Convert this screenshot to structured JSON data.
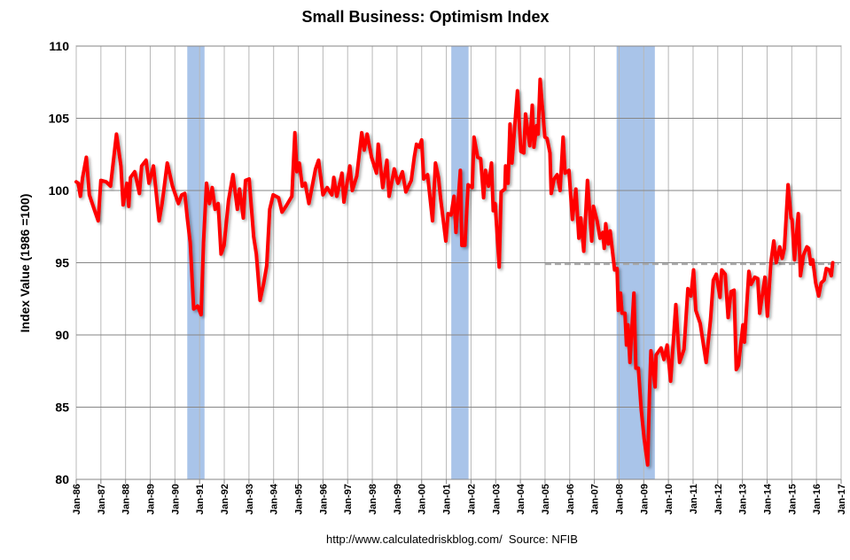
{
  "chart_data": {
    "type": "line",
    "title": "Small Business: Optimism Index",
    "xlabel": "",
    "ylabel": "Index Value (1986 =100)",
    "source": "http://www.calculatedriskblog.com/  Source: NFIB",
    "ylim": [
      80,
      110
    ],
    "yticks": [
      "80",
      "85",
      "90",
      "95",
      "100",
      "105",
      "110"
    ],
    "xlim": [
      1986,
      2017
    ],
    "xticks": [
      "Jan-86",
      "Jan-87",
      "Jan-88",
      "Jan-89",
      "Jan-90",
      "Jan-91",
      "Jan-92",
      "Jan-93",
      "Jan-94",
      "Jan-95",
      "Jan-96",
      "Jan-97",
      "Jan-98",
      "Jan-99",
      "Jan-00",
      "Jan-01",
      "Jan-02",
      "Jan-03",
      "Jan-04",
      "Jan-05",
      "Jan-06",
      "Jan-07",
      "Jan-08",
      "Jan-09",
      "Jan-10",
      "Jan-11",
      "Jan-12",
      "Jan-13",
      "Jan-14",
      "Jan-15",
      "Jan-16",
      "Jan-17"
    ],
    "grid": true,
    "line_color": "#ff0000",
    "recession_color": "#a9c4e9",
    "recessions": [
      [
        1990.5,
        1991.2
      ],
      [
        2001.2,
        2001.9
      ],
      [
        2007.9,
        2009.45
      ]
    ],
    "reference_line": {
      "value": 94.9,
      "start": 2005.0,
      "end": 2016.9,
      "style": "dashed",
      "color": "#a6a6a6"
    },
    "series": [
      {
        "points": [
          [
            1986.0,
            100.6
          ],
          [
            1986.08,
            100.5
          ],
          [
            1986.17,
            99.6
          ],
          [
            1986.26,
            100.9
          ],
          [
            1986.41,
            102.3
          ],
          [
            1986.53,
            99.7
          ],
          [
            1986.73,
            98.7
          ],
          [
            1986.89,
            97.9
          ],
          [
            1987.0,
            100.7
          ],
          [
            1987.21,
            100.6
          ],
          [
            1987.39,
            100.3
          ],
          [
            1987.63,
            103.9
          ],
          [
            1987.81,
            101.7
          ],
          [
            1987.9,
            99.0
          ],
          [
            1988.05,
            100.5
          ],
          [
            1988.13,
            98.9
          ],
          [
            1988.2,
            100.9
          ],
          [
            1988.37,
            101.3
          ],
          [
            1988.56,
            99.8
          ],
          [
            1988.65,
            101.7
          ],
          [
            1988.83,
            102.1
          ],
          [
            1988.95,
            100.5
          ],
          [
            1989.13,
            101.7
          ],
          [
            1989.36,
            97.9
          ],
          [
            1989.48,
            99.1
          ],
          [
            1989.69,
            101.9
          ],
          [
            1989.9,
            100.3
          ],
          [
            1990.14,
            99.1
          ],
          [
            1990.28,
            99.7
          ],
          [
            1990.4,
            99.8
          ],
          [
            1990.5,
            98.1
          ],
          [
            1990.62,
            96.4
          ],
          [
            1990.76,
            91.8
          ],
          [
            1990.92,
            92.0
          ],
          [
            1991.06,
            91.4
          ],
          [
            1991.16,
            96.4
          ],
          [
            1991.28,
            100.5
          ],
          [
            1991.4,
            99.1
          ],
          [
            1991.51,
            100.2
          ],
          [
            1991.63,
            98.7
          ],
          [
            1991.75,
            99.1
          ],
          [
            1991.87,
            95.6
          ],
          [
            1991.99,
            96.2
          ],
          [
            1992.17,
            99.3
          ],
          [
            1992.35,
            101.1
          ],
          [
            1992.53,
            98.7
          ],
          [
            1992.62,
            100.1
          ],
          [
            1992.77,
            98.1
          ],
          [
            1992.86,
            100.7
          ],
          [
            1993.01,
            100.8
          ],
          [
            1993.19,
            96.8
          ],
          [
            1993.3,
            95.6
          ],
          [
            1993.45,
            92.4
          ],
          [
            1993.6,
            93.6
          ],
          [
            1993.72,
            94.8
          ],
          [
            1993.84,
            98.7
          ],
          [
            1993.98,
            99.7
          ],
          [
            1994.2,
            99.5
          ],
          [
            1994.34,
            98.5
          ],
          [
            1994.5,
            98.9
          ],
          [
            1994.74,
            99.6
          ],
          [
            1994.86,
            104.0
          ],
          [
            1994.94,
            101.3
          ],
          [
            1995.04,
            101.9
          ],
          [
            1995.16,
            100.3
          ],
          [
            1995.28,
            100.5
          ],
          [
            1995.43,
            99.1
          ],
          [
            1995.7,
            101.5
          ],
          [
            1995.82,
            102.1
          ],
          [
            1996.0,
            99.7
          ],
          [
            1996.17,
            100.2
          ],
          [
            1996.36,
            99.7
          ],
          [
            1996.44,
            100.9
          ],
          [
            1996.56,
            99.6
          ],
          [
            1996.77,
            101.2
          ],
          [
            1996.85,
            99.2
          ],
          [
            1997.09,
            101.7
          ],
          [
            1997.19,
            100.0
          ],
          [
            1997.37,
            101.0
          ],
          [
            1997.57,
            104.0
          ],
          [
            1997.67,
            102.8
          ],
          [
            1997.79,
            103.9
          ],
          [
            1997.97,
            102.3
          ],
          [
            1998.17,
            101.2
          ],
          [
            1998.24,
            103.2
          ],
          [
            1998.42,
            100.2
          ],
          [
            1998.59,
            102.1
          ],
          [
            1998.68,
            99.6
          ],
          [
            1998.89,
            101.5
          ],
          [
            1999.04,
            100.5
          ],
          [
            1999.22,
            101.3
          ],
          [
            1999.36,
            99.9
          ],
          [
            1999.58,
            100.7
          ],
          [
            1999.7,
            102.3
          ],
          [
            1999.79,
            103.2
          ],
          [
            1999.9,
            103.0
          ],
          [
            2000.0,
            103.5
          ],
          [
            2000.08,
            100.8
          ],
          [
            2000.24,
            101.1
          ],
          [
            2000.44,
            97.9
          ],
          [
            2000.56,
            101.9
          ],
          [
            2000.68,
            100.9
          ],
          [
            2000.77,
            99.4
          ],
          [
            2000.98,
            96.5
          ],
          [
            2001.07,
            98.4
          ],
          [
            2001.19,
            98.3
          ],
          [
            2001.31,
            99.6
          ],
          [
            2001.39,
            97.1
          ],
          [
            2001.57,
            101.4
          ],
          [
            2001.63,
            96.2
          ],
          [
            2001.75,
            96.2
          ],
          [
            2001.88,
            100.4
          ],
          [
            2002.05,
            100.2
          ],
          [
            2002.12,
            103.7
          ],
          [
            2002.27,
            102.3
          ],
          [
            2002.39,
            102.2
          ],
          [
            2002.51,
            99.5
          ],
          [
            2002.59,
            101.4
          ],
          [
            2002.71,
            100.3
          ],
          [
            2002.83,
            101.9
          ],
          [
            2002.9,
            98.6
          ],
          [
            2002.98,
            99.1
          ],
          [
            2003.14,
            94.7
          ],
          [
            2003.22,
            99.9
          ],
          [
            2003.37,
            100.1
          ],
          [
            2003.4,
            101.7
          ],
          [
            2003.5,
            100.5
          ],
          [
            2003.58,
            104.6
          ],
          [
            2003.66,
            101.9
          ],
          [
            2003.88,
            106.9
          ],
          [
            2004.02,
            102.7
          ],
          [
            2004.14,
            102.6
          ],
          [
            2004.21,
            105.3
          ],
          [
            2004.38,
            103.1
          ],
          [
            2004.48,
            105.9
          ],
          [
            2004.55,
            103.0
          ],
          [
            2004.66,
            104.5
          ],
          [
            2004.72,
            103.9
          ],
          [
            2004.8,
            107.7
          ],
          [
            2004.99,
            103.7
          ],
          [
            2005.08,
            103.6
          ],
          [
            2005.2,
            102.6
          ],
          [
            2005.25,
            99.8
          ],
          [
            2005.37,
            100.8
          ],
          [
            2005.49,
            101.1
          ],
          [
            2005.61,
            100.0
          ],
          [
            2005.73,
            103.7
          ],
          [
            2005.81,
            101.2
          ],
          [
            2005.97,
            101.4
          ],
          [
            2006.11,
            98.0
          ],
          [
            2006.25,
            100.1
          ],
          [
            2006.37,
            96.7
          ],
          [
            2006.45,
            98.1
          ],
          [
            2006.57,
            95.8
          ],
          [
            2006.72,
            100.7
          ],
          [
            2006.89,
            96.5
          ],
          [
            2006.96,
            98.9
          ],
          [
            2007.11,
            97.9
          ],
          [
            2007.23,
            96.7
          ],
          [
            2007.34,
            97.1
          ],
          [
            2007.4,
            96.0
          ],
          [
            2007.46,
            97.7
          ],
          [
            2007.56,
            96.3
          ],
          [
            2007.64,
            97.2
          ],
          [
            2007.82,
            94.5
          ],
          [
            2007.92,
            94.6
          ],
          [
            2007.97,
            91.7
          ],
          [
            2008.06,
            92.9
          ],
          [
            2008.12,
            91.5
          ],
          [
            2008.24,
            91.5
          ],
          [
            2008.3,
            89.3
          ],
          [
            2008.36,
            90.7
          ],
          [
            2008.44,
            88.1
          ],
          [
            2008.6,
            92.9
          ],
          [
            2008.68,
            87.7
          ],
          [
            2008.78,
            87.7
          ],
          [
            2008.9,
            84.8
          ],
          [
            2009.02,
            82.8
          ],
          [
            2009.16,
            81.0
          ],
          [
            2009.23,
            85.8
          ],
          [
            2009.29,
            88.9
          ],
          [
            2009.46,
            86.4
          ],
          [
            2009.5,
            88.6
          ],
          [
            2009.7,
            89.1
          ],
          [
            2009.82,
            88.3
          ],
          [
            2009.95,
            89.3
          ],
          [
            2010.09,
            86.8
          ],
          [
            2010.3,
            92.1
          ],
          [
            2010.45,
            88.1
          ],
          [
            2010.63,
            89.0
          ],
          [
            2010.79,
            93.2
          ],
          [
            2010.91,
            92.7
          ],
          [
            2011.02,
            94.5
          ],
          [
            2011.11,
            91.7
          ],
          [
            2011.29,
            90.8
          ],
          [
            2011.53,
            88.1
          ],
          [
            2011.71,
            91.1
          ],
          [
            2011.82,
            93.8
          ],
          [
            2011.94,
            94.2
          ],
          [
            2012.09,
            92.6
          ],
          [
            2012.16,
            94.5
          ],
          [
            2012.3,
            94.2
          ],
          [
            2012.42,
            91.2
          ],
          [
            2012.54,
            93.0
          ],
          [
            2012.66,
            93.1
          ],
          [
            2012.75,
            87.6
          ],
          [
            2012.84,
            87.9
          ],
          [
            2013.02,
            90.7
          ],
          [
            2013.08,
            89.5
          ],
          [
            2013.26,
            94.4
          ],
          [
            2013.35,
            93.5
          ],
          [
            2013.5,
            94.0
          ],
          [
            2013.62,
            93.9
          ],
          [
            2013.7,
            91.5
          ],
          [
            2013.91,
            94.0
          ],
          [
            2014.01,
            91.3
          ],
          [
            2014.15,
            95.0
          ],
          [
            2014.27,
            96.5
          ],
          [
            2014.37,
            95.0
          ],
          [
            2014.51,
            96.1
          ],
          [
            2014.61,
            95.3
          ],
          [
            2014.7,
            96.0
          ],
          [
            2014.85,
            100.4
          ],
          [
            2014.97,
            98.1
          ],
          [
            2015.01,
            98.0
          ],
          [
            2015.11,
            95.2
          ],
          [
            2015.26,
            98.4
          ],
          [
            2015.35,
            94.1
          ],
          [
            2015.47,
            95.5
          ],
          [
            2015.61,
            96.1
          ],
          [
            2015.68,
            96.0
          ],
          [
            2015.77,
            94.9
          ],
          [
            2015.85,
            95.2
          ],
          [
            2015.97,
            93.6
          ],
          [
            2016.09,
            92.7
          ],
          [
            2016.19,
            93.6
          ],
          [
            2016.31,
            93.8
          ],
          [
            2016.4,
            94.6
          ],
          [
            2016.52,
            94.5
          ],
          [
            2016.6,
            94.1
          ],
          [
            2016.66,
            95.0
          ]
        ]
      }
    ]
  }
}
